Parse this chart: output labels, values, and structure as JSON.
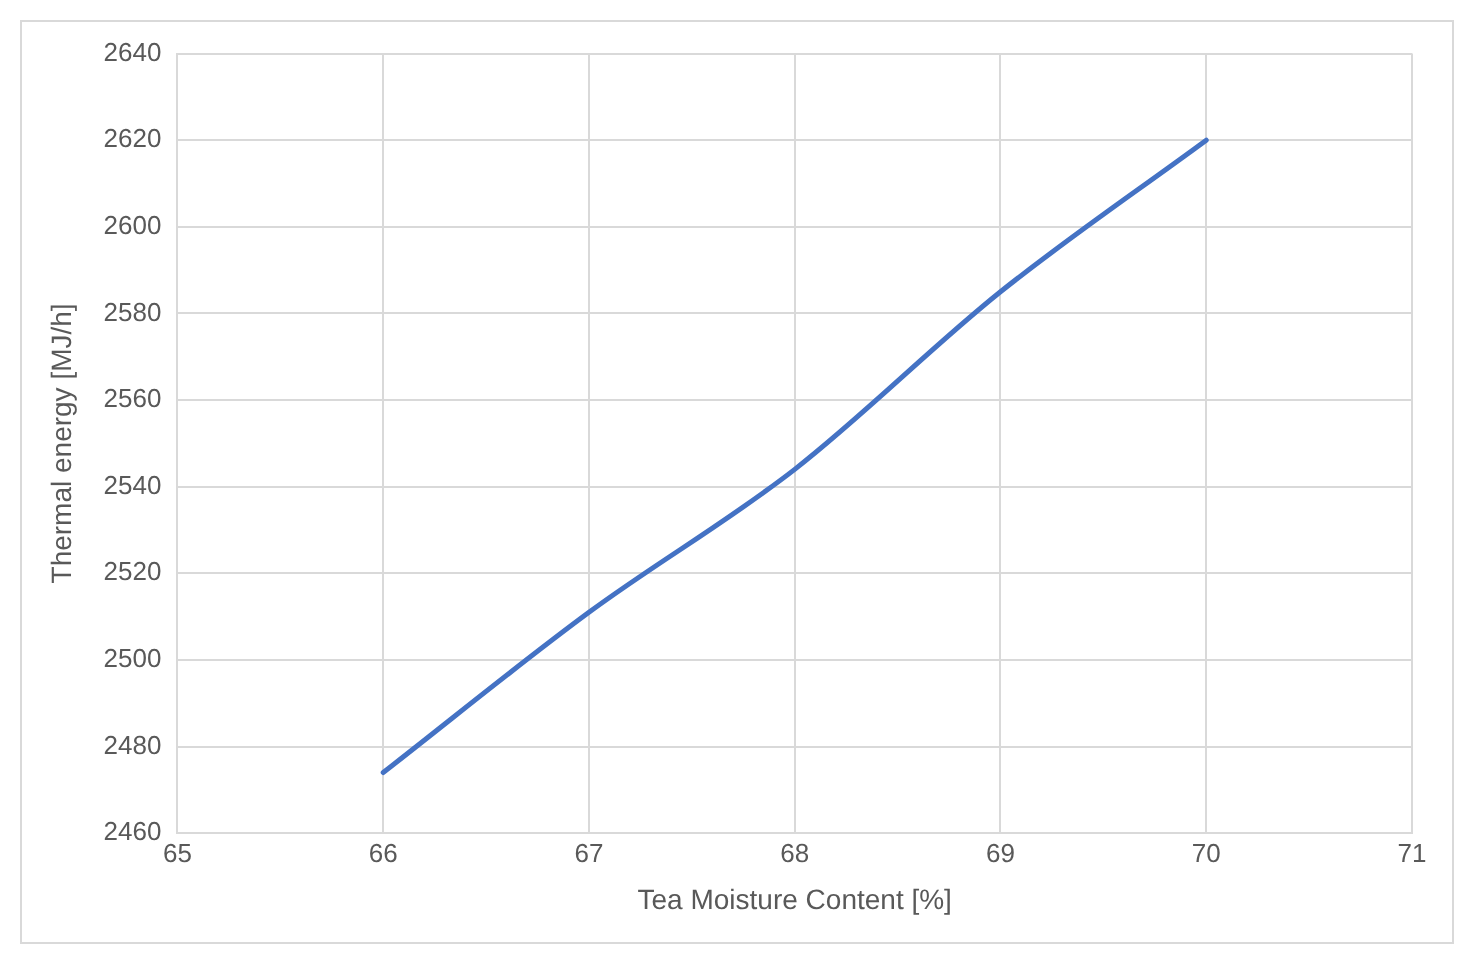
{
  "chart_data": {
    "type": "line",
    "xlabel": "Tea Moisture Content [%]",
    "ylabel": "Thermal energy [MJ/h]",
    "x": [
      66,
      67,
      68,
      69,
      70
    ],
    "series": [
      {
        "color": "#4472c4",
        "values": [
          2474,
          2511,
          2544,
          2585,
          2620
        ]
      }
    ],
    "xlim": [
      65,
      71
    ],
    "xticks": [
      65,
      66,
      67,
      68,
      69,
      70,
      71
    ],
    "ylim": [
      2460,
      2640
    ],
    "yticks": [
      2460,
      2480,
      2500,
      2520,
      2540,
      2560,
      2580,
      2600,
      2620,
      2640
    ],
    "grid": true,
    "legend": false,
    "marker": "none",
    "line_style": "solid"
  }
}
